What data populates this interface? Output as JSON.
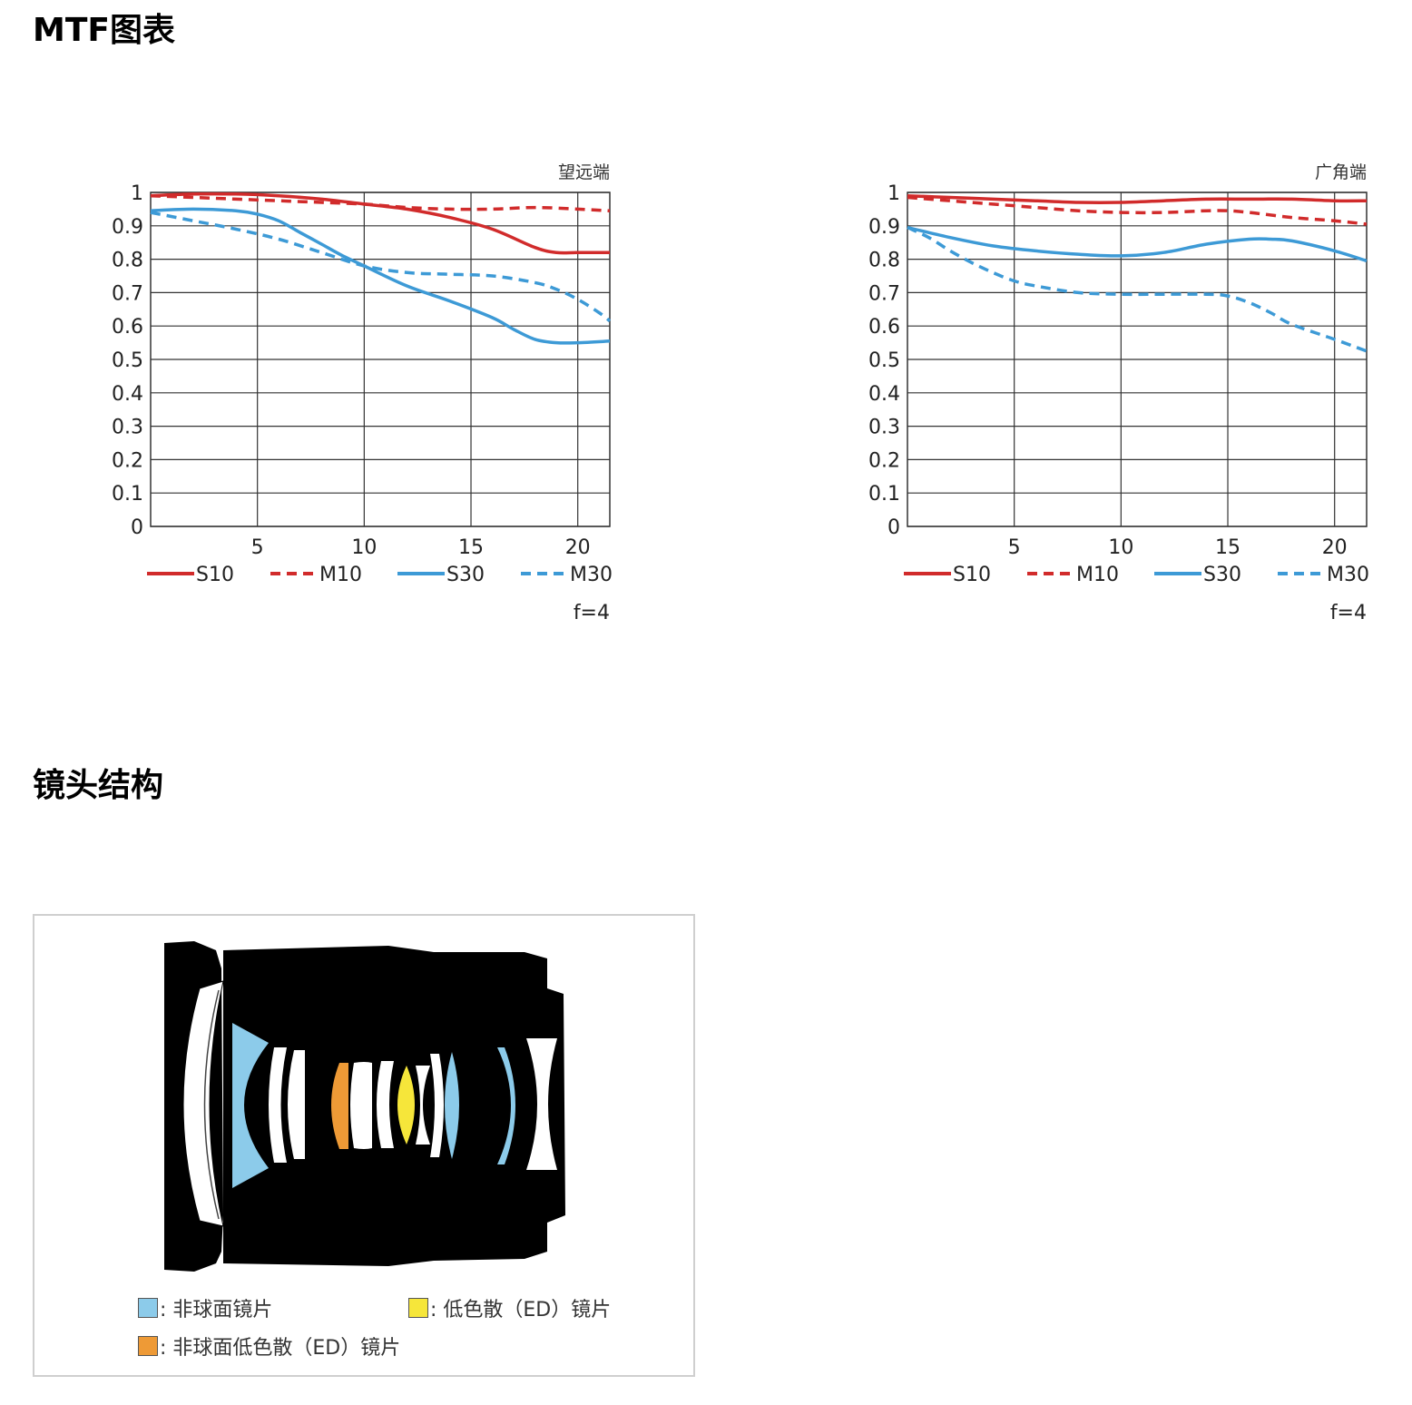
{
  "sections": {
    "mtf_title": "MTF图表",
    "lens_title": "镜头结构"
  },
  "chart_data": [
    {
      "type": "line",
      "title": "望远端",
      "note": "f=4",
      "xlim": [
        0,
        21.5
      ],
      "ylim": [
        0,
        1
      ],
      "x_ticks": [
        5,
        10,
        15,
        20
      ],
      "y_ticks": [
        0,
        0.1,
        0.2,
        0.3,
        0.4,
        0.5,
        0.6,
        0.7,
        0.8,
        0.9,
        1
      ],
      "grid": true,
      "legend_position": "bottom",
      "series": [
        {
          "name": "S10",
          "color": "#d12b2b",
          "dash": false,
          "x": [
            0,
            2,
            4,
            6,
            8,
            10,
            12,
            14,
            16,
            18,
            19,
            20,
            21.5
          ],
          "y": [
            0.99,
            0.995,
            0.995,
            0.99,
            0.98,
            0.965,
            0.95,
            0.925,
            0.89,
            0.835,
            0.82,
            0.82,
            0.82
          ]
        },
        {
          "name": "M10",
          "color": "#d12b2b",
          "dash": true,
          "x": [
            0,
            2,
            4,
            6,
            8,
            10,
            12,
            14,
            16,
            18,
            20,
            21.5
          ],
          "y": [
            0.99,
            0.985,
            0.98,
            0.975,
            0.97,
            0.965,
            0.955,
            0.95,
            0.95,
            0.955,
            0.95,
            0.945
          ]
        },
        {
          "name": "S30",
          "color": "#3d9ad6",
          "dash": false,
          "x": [
            0,
            2,
            4,
            5,
            6,
            7,
            8,
            9,
            10,
            12,
            14,
            16,
            17,
            18,
            19,
            20,
            21.5
          ],
          "y": [
            0.945,
            0.95,
            0.945,
            0.935,
            0.915,
            0.88,
            0.845,
            0.81,
            0.78,
            0.72,
            0.675,
            0.625,
            0.59,
            0.56,
            0.55,
            0.55,
            0.555
          ]
        },
        {
          "name": "M30",
          "color": "#3d9ad6",
          "dash": true,
          "x": [
            0,
            2,
            4,
            6,
            8,
            10,
            12,
            14,
            16,
            18,
            19,
            20,
            21,
            21.5
          ],
          "y": [
            0.94,
            0.915,
            0.89,
            0.86,
            0.82,
            0.78,
            0.76,
            0.755,
            0.75,
            0.73,
            0.71,
            0.68,
            0.64,
            0.615
          ]
        }
      ]
    },
    {
      "type": "line",
      "title": "广角端",
      "note": "f=4",
      "xlim": [
        0,
        21.5
      ],
      "ylim": [
        0,
        1
      ],
      "x_ticks": [
        5,
        10,
        15,
        20
      ],
      "y_ticks": [
        0,
        0.1,
        0.2,
        0.3,
        0.4,
        0.5,
        0.6,
        0.7,
        0.8,
        0.9,
        1
      ],
      "grid": true,
      "legend_position": "bottom",
      "series": [
        {
          "name": "S10",
          "color": "#d12b2b",
          "dash": false,
          "x": [
            0,
            2,
            4,
            6,
            8,
            10,
            12,
            14,
            16,
            18,
            20,
            21.5
          ],
          "y": [
            0.99,
            0.985,
            0.98,
            0.975,
            0.97,
            0.97,
            0.975,
            0.98,
            0.98,
            0.98,
            0.975,
            0.975
          ]
        },
        {
          "name": "M10",
          "color": "#d12b2b",
          "dash": true,
          "x": [
            0,
            2,
            4,
            6,
            8,
            10,
            12,
            14,
            15,
            16,
            18,
            20,
            21.5
          ],
          "y": [
            0.985,
            0.975,
            0.965,
            0.955,
            0.945,
            0.94,
            0.94,
            0.945,
            0.945,
            0.94,
            0.925,
            0.915,
            0.905
          ]
        },
        {
          "name": "S30",
          "color": "#3d9ad6",
          "dash": false,
          "x": [
            0,
            2,
            4,
            6,
            8,
            10,
            12,
            14,
            16,
            17,
            18,
            20,
            21.5
          ],
          "y": [
            0.895,
            0.865,
            0.84,
            0.825,
            0.815,
            0.81,
            0.82,
            0.845,
            0.86,
            0.86,
            0.855,
            0.825,
            0.795
          ]
        },
        {
          "name": "M30",
          "color": "#3d9ad6",
          "dash": true,
          "x": [
            0,
            1,
            2,
            3,
            4,
            5,
            6,
            8,
            10,
            12,
            14,
            15,
            16,
            17,
            18,
            20,
            21.5
          ],
          "y": [
            0.895,
            0.865,
            0.825,
            0.79,
            0.76,
            0.735,
            0.72,
            0.7,
            0.695,
            0.695,
            0.695,
            0.69,
            0.67,
            0.64,
            0.605,
            0.56,
            0.525
          ]
        }
      ]
    }
  ],
  "lens_diagram": {
    "legend": [
      {
        "label": ": 非球面镜片",
        "color": "#8ccbea"
      },
      {
        "label": ": 低色散（ED）镜片",
        "color": "#f6e63a"
      },
      {
        "label": ": 非球面低色散（ED）镜片",
        "color": "#ee9a36"
      }
    ]
  }
}
